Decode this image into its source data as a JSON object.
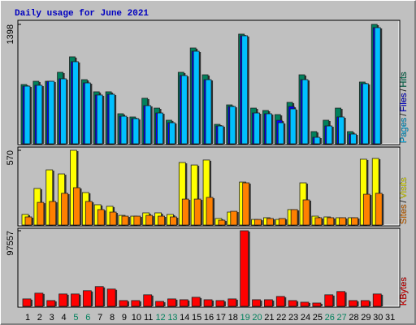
{
  "title": "Daily usage for June 2021",
  "legend_separator": "/",
  "chart_data": [
    {
      "type": "bar",
      "ylim": [
        0,
        1398
      ],
      "yticks": [
        1398
      ],
      "series": [
        {
          "name": "Hits",
          "color": "#00805c",
          "values": [
            694,
            732,
            732,
            837,
            1018,
            751,
            609,
            609,
            352,
            314,
            533,
            418,
            276,
            837,
            1122,
            808,
            228,
            456,
            1284,
            418,
            390,
            342,
            485,
            808,
            143,
            276,
            418,
            143,
            723,
            1398,
            0
          ]
        },
        {
          "name": "Files",
          "color": "#0000ff",
          "values": [
            675,
            685,
            732,
            761,
            961,
            713,
            571,
            580,
            323,
            295,
            447,
            361,
            247,
            799,
            1084,
            751,
            209,
            437,
            1265,
            361,
            352,
            275,
            437,
            751,
            76,
            209,
            314,
            114,
            704,
            1360,
            0
          ]
        },
        {
          "name": "Pages",
          "color": "#00c0ff",
          "values": [
            675,
            685,
            732,
            761,
            961,
            713,
            571,
            580,
            323,
            295,
            447,
            361,
            247,
            799,
            1084,
            751,
            209,
            437,
            1265,
            361,
            352,
            247,
            409,
            751,
            76,
            209,
            314,
            114,
            704,
            1360,
            0
          ]
        }
      ]
    },
    {
      "type": "bar",
      "ylim": [
        0,
        570
      ],
      "yticks": [
        570
      ],
      "series": [
        {
          "name": "Visits",
          "color": "#ffff00",
          "values": [
            81,
            279,
            421,
            390,
            570,
            248,
            155,
            143,
            74,
            68,
            93,
            93,
            81,
            477,
            458,
            496,
            50,
            99,
            328,
            43,
            56,
            43,
            118,
            322,
            68,
            62,
            56,
            56,
            502,
            508,
            0
          ]
        },
        {
          "name": "Sites",
          "color": "#ff8000",
          "values": [
            62,
            173,
            180,
            242,
            285,
            180,
            118,
            99,
            68,
            68,
            74,
            68,
            62,
            198,
            198,
            211,
            37,
            105,
            322,
            43,
            50,
            50,
            118,
            192,
            56,
            56,
            56,
            56,
            235,
            242,
            0
          ]
        }
      ]
    },
    {
      "type": "bar",
      "ylim": [
        0,
        97557
      ],
      "yticks": [
        97557
      ],
      "categories": [
        "1",
        "2",
        "3",
        "4",
        "5",
        "6",
        "7",
        "8",
        "9",
        "10",
        "11",
        "12",
        "13",
        "14",
        "15",
        "16",
        "17",
        "18",
        "19",
        "20",
        "21",
        "22",
        "23",
        "24",
        "25",
        "26",
        "27",
        "28",
        "29",
        "30",
        "31"
      ],
      "label_colors": [
        "#000000",
        "#000000",
        "#000000",
        "#000000",
        "#00805c",
        "#00805c",
        "#000000",
        "#000000",
        "#000000",
        "#000000",
        "#000000",
        "#00805c",
        "#00805c",
        "#000000",
        "#000000",
        "#000000",
        "#000000",
        "#000000",
        "#00805c",
        "#00805c",
        "#000000",
        "#000000",
        "#000000",
        "#000000",
        "#000000",
        "#00805c",
        "#00805c",
        "#000000",
        "#000000",
        "#000000",
        "#000000"
      ],
      "series": [
        {
          "name": "KBytes",
          "color": "#ff0000",
          "values": [
            9543,
            16967,
            7423,
            15906,
            15906,
            20148,
            25450,
            22269,
            7423,
            7423,
            14846,
            6362,
            9543,
            8483,
            11664,
            8483,
            7423,
            9543,
            97557,
            8483,
            8483,
            12725,
            7423,
            5302,
            4241,
            14846,
            19088,
            7423,
            7423,
            15906,
            0
          ]
        }
      ]
    }
  ]
}
